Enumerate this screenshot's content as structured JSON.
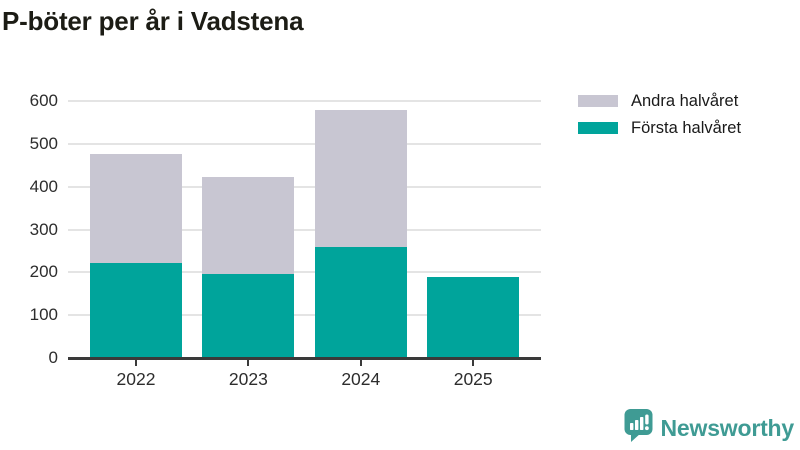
{
  "title": "P-böter per år i Vadstena",
  "legend": {
    "items": [
      {
        "label": "Andra halvåret",
        "color": "#c8c6d2"
      },
      {
        "label": "Första halvåret",
        "color": "#00a49b"
      }
    ]
  },
  "chart_data": {
    "type": "bar",
    "stacked": true,
    "title": "P-böter per år i Vadstena",
    "categories": [
      "2022",
      "2023",
      "2024",
      "2025"
    ],
    "series": [
      {
        "name": "Första halvåret",
        "color": "#00a49b",
        "values": [
          221,
          196,
          258,
          189
        ]
      },
      {
        "name": "Andra halvåret",
        "color": "#c8c6d2",
        "values": [
          256,
          226,
          320,
          0
        ]
      }
    ],
    "totals": [
      477,
      422,
      578,
      189
    ],
    "xlabel": "",
    "ylabel": "",
    "ylim": [
      0,
      600
    ],
    "yticks": [
      0,
      100,
      200,
      300,
      400,
      500,
      600
    ],
    "grid": true,
    "legend_position": "top-right"
  },
  "colors": {
    "first_half": "#00a49b",
    "second_half": "#c8c6d2",
    "grid": "#e4e4e4",
    "axis": "#3a3a3a",
    "brand": "#3f9b94"
  },
  "footer": {
    "brand": "Newsworthy"
  }
}
